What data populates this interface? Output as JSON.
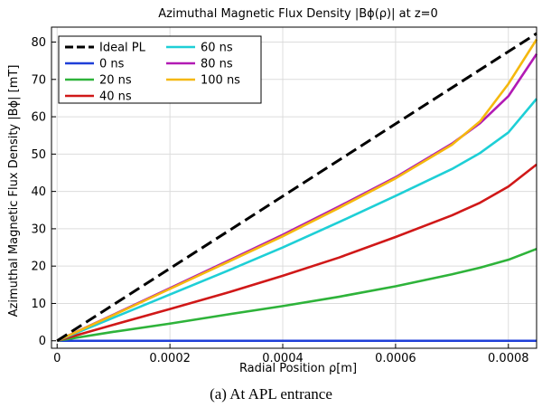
{
  "chart_data": {
    "type": "line",
    "title": "Azimuthal Magnetic Flux Density |Bϕ(ρ)| at z=0",
    "xlabel": "Radial Position ρ[m]",
    "ylabel": "Azimuthal Magnetic Flux Density |Bϕ|  [mT]",
    "xlim": [
      -1e-05,
      0.00085
    ],
    "ylim": [
      -2,
      84
    ],
    "xticks": [
      0,
      0.0002,
      0.0004,
      0.0006,
      0.0008
    ],
    "xtick_labels": [
      "0",
      "0.0002",
      "0.0004",
      "0.0006",
      "0.0008"
    ],
    "yticks": [
      0,
      10,
      20,
      30,
      40,
      50,
      60,
      70,
      80
    ],
    "ytick_labels": [
      "0",
      "10",
      "20",
      "30",
      "40",
      "50",
      "60",
      "70",
      "80"
    ],
    "grid": true,
    "legend_position": "top-left",
    "series": [
      {
        "name": "Ideal PL",
        "color": "#000000",
        "dash": true,
        "x": [
          0,
          0.00085
        ],
        "y": [
          0,
          82.3
        ]
      },
      {
        "name": "0 ns",
        "color": "#1f3fd8",
        "x": [
          0,
          0.00085
        ],
        "y": [
          0,
          0
        ]
      },
      {
        "name": "20 ns",
        "color": "#2eb33a",
        "x": [
          0,
          0.0001,
          0.0002,
          0.0003,
          0.0004,
          0.0005,
          0.0006,
          0.0007,
          0.00075,
          0.0008,
          0.00085
        ],
        "y": [
          0,
          2.4,
          4.6,
          7.0,
          9.3,
          11.8,
          14.6,
          17.8,
          19.6,
          21.7,
          24.6
        ]
      },
      {
        "name": "40 ns",
        "color": "#d01818",
        "x": [
          0,
          0.0001,
          0.0002,
          0.0003,
          0.0004,
          0.0005,
          0.0006,
          0.0007,
          0.00075,
          0.0008,
          0.00085
        ],
        "y": [
          0,
          4.3,
          8.5,
          12.8,
          17.4,
          22.3,
          27.8,
          33.6,
          37.0,
          41.3,
          47.2
        ]
      },
      {
        "name": "60 ns",
        "color": "#1ecfd6",
        "x": [
          0,
          0.0001,
          0.0002,
          0.0003,
          0.0004,
          0.0005,
          0.0006,
          0.0007,
          0.00075,
          0.0008,
          0.00085
        ],
        "y": [
          0,
          6.2,
          12.4,
          18.6,
          25.0,
          31.8,
          38.8,
          46.0,
          50.3,
          55.8,
          64.8
        ]
      },
      {
        "name": "80 ns",
        "color": "#b21ab4",
        "x": [
          0,
          0.0001,
          0.0002,
          0.0003,
          0.0004,
          0.0005,
          0.0006,
          0.0007,
          0.00075,
          0.0008,
          0.00085
        ],
        "y": [
          0,
          7.0,
          14.1,
          21.2,
          28.4,
          36.0,
          43.8,
          52.8,
          58.3,
          65.5,
          76.8
        ]
      },
      {
        "name": "100 ns",
        "color": "#f5b80e",
        "x": [
          0,
          0.0001,
          0.0002,
          0.0003,
          0.0004,
          0.0005,
          0.0006,
          0.0007,
          0.00075,
          0.0008,
          0.00085
        ],
        "y": [
          0,
          6.9,
          13.9,
          20.9,
          28.0,
          35.6,
          43.5,
          52.5,
          58.8,
          68.8,
          80.7
        ]
      }
    ]
  },
  "caption": "(a) At APL entrance"
}
